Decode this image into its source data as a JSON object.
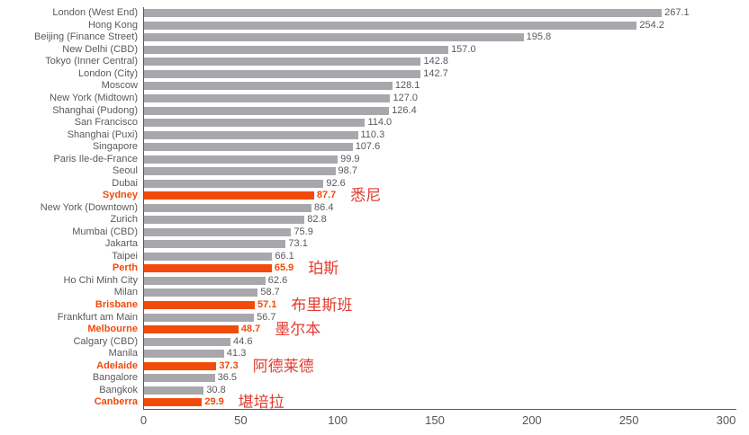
{
  "chart_data": {
    "type": "bar",
    "orientation": "horizontal",
    "title": "",
    "xlabel": "",
    "ylabel": "",
    "xlim": [
      0,
      300
    ],
    "x_ticks": [
      0,
      50,
      100,
      150,
      200,
      250,
      300
    ],
    "grid": false,
    "legend": false,
    "colors": {
      "bar": "#a8a8ac",
      "highlight_bar": "#f24a0a",
      "annotation_text": "#e33b30",
      "label_text": "#59595c",
      "axis": "#58585b"
    },
    "rows": [
      {
        "label": "London (West End)",
        "value": 267.1
      },
      {
        "label": "Hong Kong",
        "value": 254.2
      },
      {
        "label": "Beijing (Finance Street)",
        "value": 195.8
      },
      {
        "label": "New Delhi (CBD)",
        "value": 157.0
      },
      {
        "label": "Tokyo (Inner Central)",
        "value": 142.8
      },
      {
        "label": "London (City)",
        "value": 142.7
      },
      {
        "label": "Moscow",
        "value": 128.1
      },
      {
        "label": "New York (Midtown)",
        "value": 127.0
      },
      {
        "label": "Shanghai (Pudong)",
        "value": 126.4
      },
      {
        "label": "San Francisco",
        "value": 114.0
      },
      {
        "label": "Shanghai (Puxi)",
        "value": 110.3
      },
      {
        "label": "Singapore",
        "value": 107.6
      },
      {
        "label": "Paris Ile-de-France",
        "value": 99.9
      },
      {
        "label": "Seoul",
        "value": 98.7
      },
      {
        "label": "Dubai",
        "value": 92.6
      },
      {
        "label": "Sydney",
        "value": 87.7,
        "highlight": true,
        "annotation": "悉尼"
      },
      {
        "label": "New York (Downtown)",
        "value": 86.4
      },
      {
        "label": "Zurich",
        "value": 82.8
      },
      {
        "label": "Mumbai (CBD)",
        "value": 75.9
      },
      {
        "label": "Jakarta",
        "value": 73.1
      },
      {
        "label": "Taipei",
        "value": 66.1
      },
      {
        "label": "Perth",
        "value": 65.9,
        "highlight": true,
        "annotation": "珀斯"
      },
      {
        "label": "Ho Chi Minh City",
        "value": 62.6
      },
      {
        "label": "Milan",
        "value": 58.7
      },
      {
        "label": "Brisbane",
        "value": 57.1,
        "highlight": true,
        "annotation": "布里斯班"
      },
      {
        "label": "Frankfurt am Main",
        "value": 56.7
      },
      {
        "label": "Melbourne",
        "value": 48.7,
        "highlight": true,
        "annotation": "墨尔本"
      },
      {
        "label": "Calgary (CBD)",
        "value": 44.6
      },
      {
        "label": "Manila",
        "value": 41.3
      },
      {
        "label": "Adelaide",
        "value": 37.3,
        "highlight": true,
        "annotation": "阿德莱德"
      },
      {
        "label": "Bangalore",
        "value": 36.5
      },
      {
        "label": "Bangkok",
        "value": 30.8
      },
      {
        "label": "Canberra",
        "value": 29.9,
        "highlight": true,
        "annotation": "堪培拉"
      }
    ]
  }
}
